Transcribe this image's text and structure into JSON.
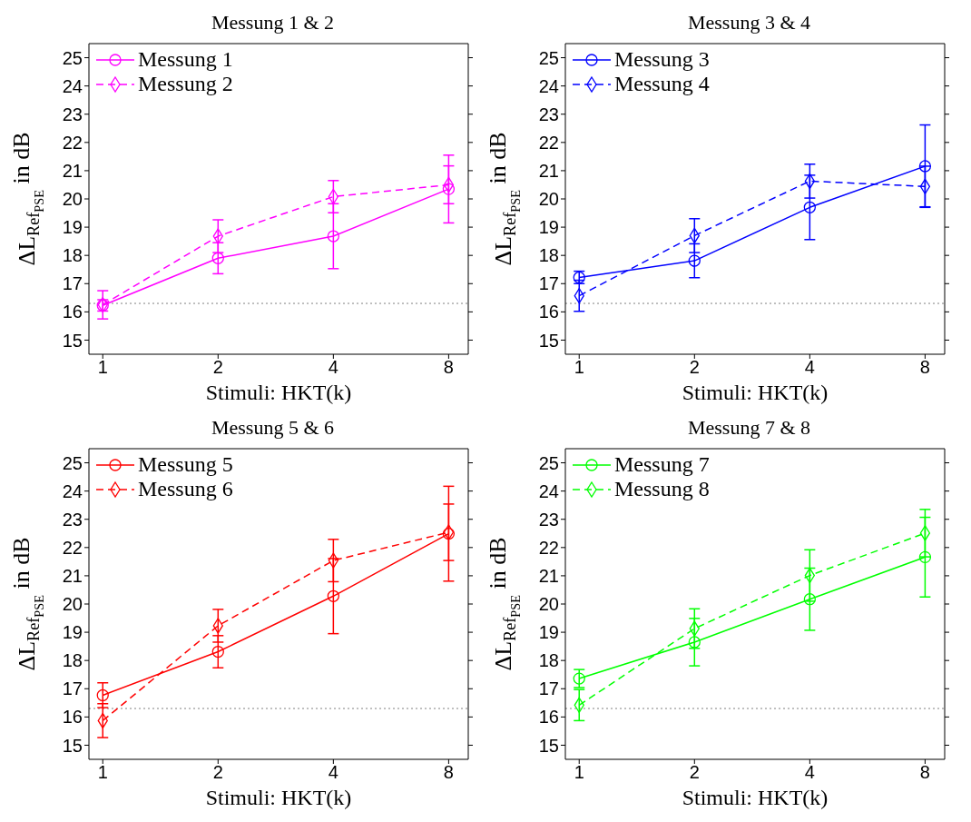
{
  "chart_data": [
    {
      "type": "line",
      "title": "Messung 1 & 2",
      "xlabel": "Stimuli: HKT(k)",
      "ylabel": "ΔL$_{Ref}$$_{PSE}$ in dB",
      "categories": [
        "1",
        "2",
        "4",
        "8"
      ],
      "ylim": [
        14.5,
        25.5
      ],
      "yticks": [
        15,
        16,
        17,
        18,
        19,
        20,
        21,
        22,
        23,
        24,
        25
      ],
      "legend": "top left",
      "grid": false,
      "ref_lines": [
        {
          "axis": "y",
          "value": 16.3,
          "color": "#808080",
          "line_style": "dotted"
        }
      ],
      "series": [
        {
          "name": "Messung 1",
          "color": "#ff00ff",
          "marker": "circle",
          "line_style": "solid",
          "values": [
            16.23,
            17.9,
            18.68,
            20.35
          ],
          "errors": [
            0.2,
            0.55,
            1.15,
            1.2
          ]
        },
        {
          "name": "Messung 2",
          "color": "#ff00ff",
          "marker": "diamond",
          "line_style": "dashed",
          "values": [
            16.25,
            18.68,
            20.08,
            20.5
          ],
          "errors": [
            0.5,
            0.58,
            0.57,
            0.67
          ]
        }
      ]
    },
    {
      "type": "line",
      "title": "Messung 3 & 4",
      "xlabel": "Stimuli: HKT(k)",
      "ylabel": "ΔL$_{Ref}$$_{PSE}$ in dB",
      "categories": [
        "1",
        "2",
        "4",
        "8"
      ],
      "ylim": [
        14.5,
        25.5
      ],
      "yticks": [
        15,
        16,
        17,
        18,
        19,
        20,
        21,
        22,
        23,
        24,
        25
      ],
      "legend": "top left",
      "grid": false,
      "ref_lines": [
        {
          "axis": "y",
          "value": 16.3,
          "color": "#808080",
          "line_style": "dotted"
        }
      ],
      "series": [
        {
          "name": "Messung 3",
          "color": "#0000ff",
          "marker": "circle",
          "line_style": "solid",
          "values": [
            17.22,
            17.81,
            19.7,
            21.16
          ],
          "errors": [
            0.22,
            0.6,
            1.14,
            1.46
          ]
        },
        {
          "name": "Messung 4",
          "color": "#0000ff",
          "marker": "diamond",
          "line_style": "dashed",
          "values": [
            16.57,
            18.7,
            20.63,
            20.44
          ],
          "errors": [
            0.55,
            0.6,
            0.6,
            0.72
          ]
        }
      ]
    },
    {
      "type": "line",
      "title": "Messung 5 & 6",
      "xlabel": "Stimuli: HKT(k)",
      "ylabel": "ΔL$_{Ref}$$_{PSE}$ in dB",
      "categories": [
        "1",
        "2",
        "4",
        "8"
      ],
      "ylim": [
        14.5,
        25.5
      ],
      "yticks": [
        15,
        16,
        17,
        18,
        19,
        20,
        21,
        22,
        23,
        24,
        25
      ],
      "legend": "top left",
      "grid": false,
      "ref_lines": [
        {
          "axis": "y",
          "value": 16.3,
          "color": "#808080",
          "line_style": "dotted"
        }
      ],
      "series": [
        {
          "name": "Messung 5",
          "color": "#ff0000",
          "marker": "circle",
          "line_style": "solid",
          "values": [
            16.77,
            18.31,
            20.28,
            22.49
          ],
          "errors": [
            0.44,
            0.57,
            1.33,
            1.68
          ]
        },
        {
          "name": "Messung 6",
          "color": "#ff0000",
          "marker": "diamond",
          "line_style": "dashed",
          "values": [
            15.87,
            19.23,
            21.54,
            22.54
          ],
          "errors": [
            0.6,
            0.58,
            0.75,
            1.0
          ]
        }
      ]
    },
    {
      "type": "line",
      "title": "Messung 7 & 8",
      "xlabel": "Stimuli: HKT(k)",
      "ylabel": "ΔL$_{Ref}$$_{PSE}$ in dB",
      "categories": [
        "1",
        "2",
        "4",
        "8"
      ],
      "ylim": [
        14.5,
        25.5
      ],
      "yticks": [
        15,
        16,
        17,
        18,
        19,
        20,
        21,
        22,
        23,
        24,
        25
      ],
      "legend": "top left",
      "grid": false,
      "ref_lines": [
        {
          "axis": "y",
          "value": 16.3,
          "color": "#808080",
          "line_style": "dotted"
        }
      ],
      "series": [
        {
          "name": "Messung 7",
          "color": "#00ff00",
          "marker": "circle",
          "line_style": "solid",
          "values": [
            17.36,
            18.65,
            20.17,
            21.66
          ],
          "errors": [
            0.32,
            0.84,
            1.1,
            1.41
          ]
        },
        {
          "name": "Messung 8",
          "color": "#00ff00",
          "marker": "diamond",
          "line_style": "dashed",
          "values": [
            16.42,
            19.13,
            21.01,
            22.51
          ],
          "errors": [
            0.55,
            0.7,
            0.91,
            0.84
          ]
        }
      ]
    }
  ]
}
